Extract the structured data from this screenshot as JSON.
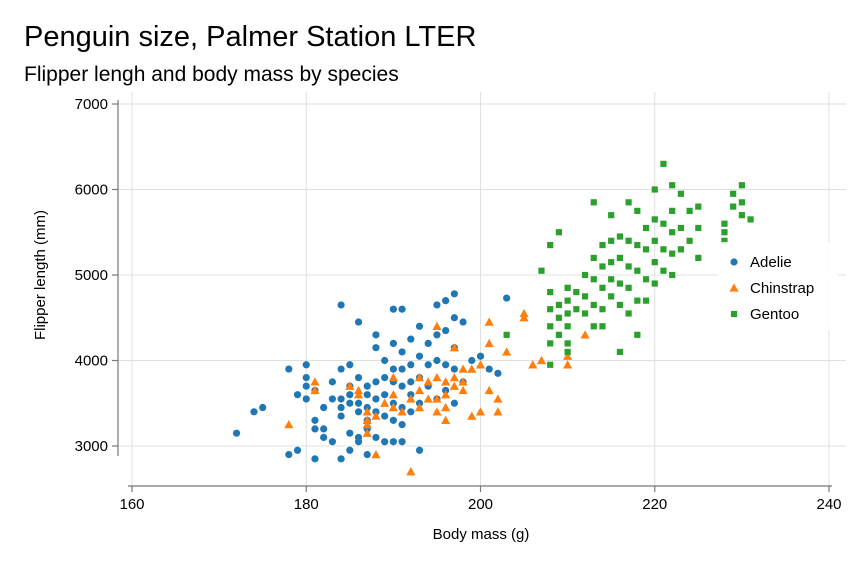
{
  "chart_data": {
    "type": "scatter",
    "title": "Penguin size, Palmer Station LTER",
    "subtitle": "Flipper lengh and body mass by species",
    "xlabel": "Body mass (g)",
    "ylabel": "Flipper length (mm)",
    "xlim": [
      160,
      240
    ],
    "ylim": [
      2500,
      7000
    ],
    "xticks": [
      160,
      180,
      200,
      220,
      240
    ],
    "yticks": [
      3000,
      4000,
      5000,
      6000,
      7000
    ],
    "grid": true,
    "legend_position": "right",
    "series": [
      {
        "name": "Adelie",
        "marker": "circle",
        "color": "#1f77b4",
        "points": [
          [
            172,
            3150
          ],
          [
            174,
            3400
          ],
          [
            175,
            3450
          ],
          [
            178,
            3900
          ],
          [
            178,
            2900
          ],
          [
            179,
            2950
          ],
          [
            179,
            3600
          ],
          [
            180,
            3950
          ],
          [
            180,
            3800
          ],
          [
            180,
            3700
          ],
          [
            180,
            3550
          ],
          [
            181,
            3650
          ],
          [
            181,
            3300
          ],
          [
            181,
            3200
          ],
          [
            181,
            2850
          ],
          [
            182,
            3450
          ],
          [
            182,
            3100
          ],
          [
            182,
            3200
          ],
          [
            183,
            3750
          ],
          [
            183,
            3550
          ],
          [
            183,
            3050
          ],
          [
            184,
            4650
          ],
          [
            184,
            3900
          ],
          [
            184,
            3550
          ],
          [
            184,
            3450
          ],
          [
            184,
            3350
          ],
          [
            184,
            2850
          ],
          [
            185,
            3950
          ],
          [
            185,
            3700
          ],
          [
            185,
            3600
          ],
          [
            185,
            3500
          ],
          [
            185,
            3150
          ],
          [
            185,
            2950
          ],
          [
            186,
            4450
          ],
          [
            186,
            3800
          ],
          [
            186,
            3500
          ],
          [
            186,
            3400
          ],
          [
            186,
            3100
          ],
          [
            186,
            3050
          ],
          [
            187,
            3700
          ],
          [
            187,
            3600
          ],
          [
            187,
            3450
          ],
          [
            187,
            3300
          ],
          [
            187,
            3200
          ],
          [
            187,
            2900
          ],
          [
            188,
            4300
          ],
          [
            188,
            4150
          ],
          [
            188,
            3750
          ],
          [
            188,
            3550
          ],
          [
            188,
            3400
          ],
          [
            188,
            3100
          ],
          [
            189,
            4000
          ],
          [
            189,
            3800
          ],
          [
            189,
            3600
          ],
          [
            189,
            3350
          ],
          [
            189,
            3050
          ],
          [
            190,
            4600
          ],
          [
            190,
            4200
          ],
          [
            190,
            3900
          ],
          [
            190,
            3750
          ],
          [
            190,
            3500
          ],
          [
            190,
            3300
          ],
          [
            190,
            3050
          ],
          [
            191,
            4600
          ],
          [
            191,
            4100
          ],
          [
            191,
            3900
          ],
          [
            191,
            3700
          ],
          [
            191,
            3450
          ],
          [
            191,
            3250
          ],
          [
            191,
            3050
          ],
          [
            192,
            4250
          ],
          [
            192,
            3950
          ],
          [
            192,
            3750
          ],
          [
            192,
            3600
          ],
          [
            192,
            3400
          ],
          [
            193,
            4400
          ],
          [
            193,
            4050
          ],
          [
            193,
            3800
          ],
          [
            193,
            3500
          ],
          [
            193,
            2950
          ],
          [
            194,
            4200
          ],
          [
            194,
            3950
          ],
          [
            194,
            3700
          ],
          [
            195,
            4650
          ],
          [
            195,
            4300
          ],
          [
            195,
            4000
          ],
          [
            195,
            3550
          ],
          [
            196,
            4700
          ],
          [
            196,
            4350
          ],
          [
            196,
            3950
          ],
          [
            196,
            3650
          ],
          [
            197,
            4500
          ],
          [
            197,
            4150
          ],
          [
            197,
            3900
          ],
          [
            197,
            3500
          ],
          [
            197,
            4780
          ],
          [
            198,
            4450
          ],
          [
            198,
            3750
          ],
          [
            199,
            4000
          ],
          [
            200,
            4050
          ],
          [
            201,
            3900
          ],
          [
            202,
            3850
          ],
          [
            203,
            4730
          ]
        ]
      },
      {
        "name": "Chinstrap",
        "marker": "triangle",
        "color": "#ff7f0e",
        "points": [
          [
            178,
            3250
          ],
          [
            181,
            3750
          ],
          [
            181,
            3650
          ],
          [
            185,
            3700
          ],
          [
            186,
            3600
          ],
          [
            186,
            3650
          ],
          [
            187,
            3400
          ],
          [
            187,
            3300
          ],
          [
            187,
            3250
          ],
          [
            187,
            3150
          ],
          [
            188,
            3350
          ],
          [
            188,
            2900
          ],
          [
            189,
            3500
          ],
          [
            190,
            3800
          ],
          [
            190,
            3600
          ],
          [
            190,
            3450
          ],
          [
            191,
            3400
          ],
          [
            192,
            2700
          ],
          [
            192,
            3550
          ],
          [
            193,
            3800
          ],
          [
            193,
            3450
          ],
          [
            193,
            3650
          ],
          [
            194,
            3750
          ],
          [
            194,
            3550
          ],
          [
            195,
            4400
          ],
          [
            195,
            3800
          ],
          [
            195,
            3550
          ],
          [
            195,
            3400
          ],
          [
            196,
            3750
          ],
          [
            196,
            3450
          ],
          [
            196,
            3600
          ],
          [
            196,
            3300
          ],
          [
            197,
            4150
          ],
          [
            197,
            3800
          ],
          [
            197,
            3700
          ],
          [
            198,
            3900
          ],
          [
            198,
            3750
          ],
          [
            198,
            3650
          ],
          [
            199,
            3900
          ],
          [
            199,
            3350
          ],
          [
            200,
            3950
          ],
          [
            200,
            3400
          ],
          [
            201,
            4450
          ],
          [
            201,
            4200
          ],
          [
            201,
            3650
          ],
          [
            202,
            3550
          ],
          [
            202,
            3400
          ],
          [
            203,
            4100
          ],
          [
            205,
            4550
          ],
          [
            205,
            4500
          ],
          [
            206,
            3950
          ],
          [
            207,
            4000
          ],
          [
            210,
            4050
          ],
          [
            210,
            3950
          ],
          [
            212,
            4300
          ]
        ]
      },
      {
        "name": "Gentoo",
        "marker": "square",
        "color": "#2ca02c",
        "points": [
          [
            203,
            4300
          ],
          [
            207,
            5050
          ],
          [
            208,
            5350
          ],
          [
            208,
            4800
          ],
          [
            208,
            4600
          ],
          [
            208,
            4400
          ],
          [
            208,
            4200
          ],
          [
            208,
            3950
          ],
          [
            209,
            5500
          ],
          [
            209,
            4650
          ],
          [
            209,
            4500
          ],
          [
            209,
            4300
          ],
          [
            210,
            4850
          ],
          [
            210,
            4700
          ],
          [
            210,
            4550
          ],
          [
            210,
            4400
          ],
          [
            210,
            4200
          ],
          [
            210,
            4100
          ],
          [
            211,
            4800
          ],
          [
            211,
            4600
          ],
          [
            212,
            5000
          ],
          [
            212,
            4750
          ],
          [
            212,
            4550
          ],
          [
            213,
            5850
          ],
          [
            213,
            5200
          ],
          [
            213,
            4950
          ],
          [
            213,
            4650
          ],
          [
            213,
            4400
          ],
          [
            214,
            5350
          ],
          [
            214,
            5100
          ],
          [
            214,
            4850
          ],
          [
            214,
            4600
          ],
          [
            214,
            4400
          ],
          [
            215,
            5700
          ],
          [
            215,
            5400
          ],
          [
            215,
            5150
          ],
          [
            215,
            4950
          ],
          [
            215,
            4750
          ],
          [
            216,
            5450
          ],
          [
            216,
            5200
          ],
          [
            216,
            4900
          ],
          [
            216,
            4650
          ],
          [
            216,
            4100
          ],
          [
            217,
            5850
          ],
          [
            217,
            5400
          ],
          [
            217,
            5100
          ],
          [
            217,
            4850
          ],
          [
            217,
            4550
          ],
          [
            218,
            5750
          ],
          [
            218,
            5350
          ],
          [
            218,
            5050
          ],
          [
            218,
            4700
          ],
          [
            218,
            4300
          ],
          [
            219,
            5550
          ],
          [
            219,
            5300
          ],
          [
            219,
            4950
          ],
          [
            219,
            4700
          ],
          [
            220,
            6000
          ],
          [
            220,
            5650
          ],
          [
            220,
            5400
          ],
          [
            220,
            5150
          ],
          [
            220,
            4900
          ],
          [
            221,
            6300
          ],
          [
            221,
            5600
          ],
          [
            221,
            5300
          ],
          [
            221,
            5050
          ],
          [
            222,
            6050
          ],
          [
            222,
            5750
          ],
          [
            222,
            5500
          ],
          [
            222,
            5250
          ],
          [
            222,
            5000
          ],
          [
            223,
            5950
          ],
          [
            223,
            5550
          ],
          [
            223,
            5300
          ],
          [
            224,
            5750
          ],
          [
            224,
            5400
          ],
          [
            225,
            5800
          ],
          [
            225,
            5550
          ],
          [
            225,
            5200
          ],
          [
            228,
            5600
          ],
          [
            228,
            5500
          ],
          [
            228,
            5400
          ],
          [
            229,
            5950
          ],
          [
            229,
            5800
          ],
          [
            230,
            6050
          ],
          [
            230,
            5850
          ],
          [
            230,
            5700
          ],
          [
            231,
            5650
          ]
        ]
      }
    ]
  }
}
